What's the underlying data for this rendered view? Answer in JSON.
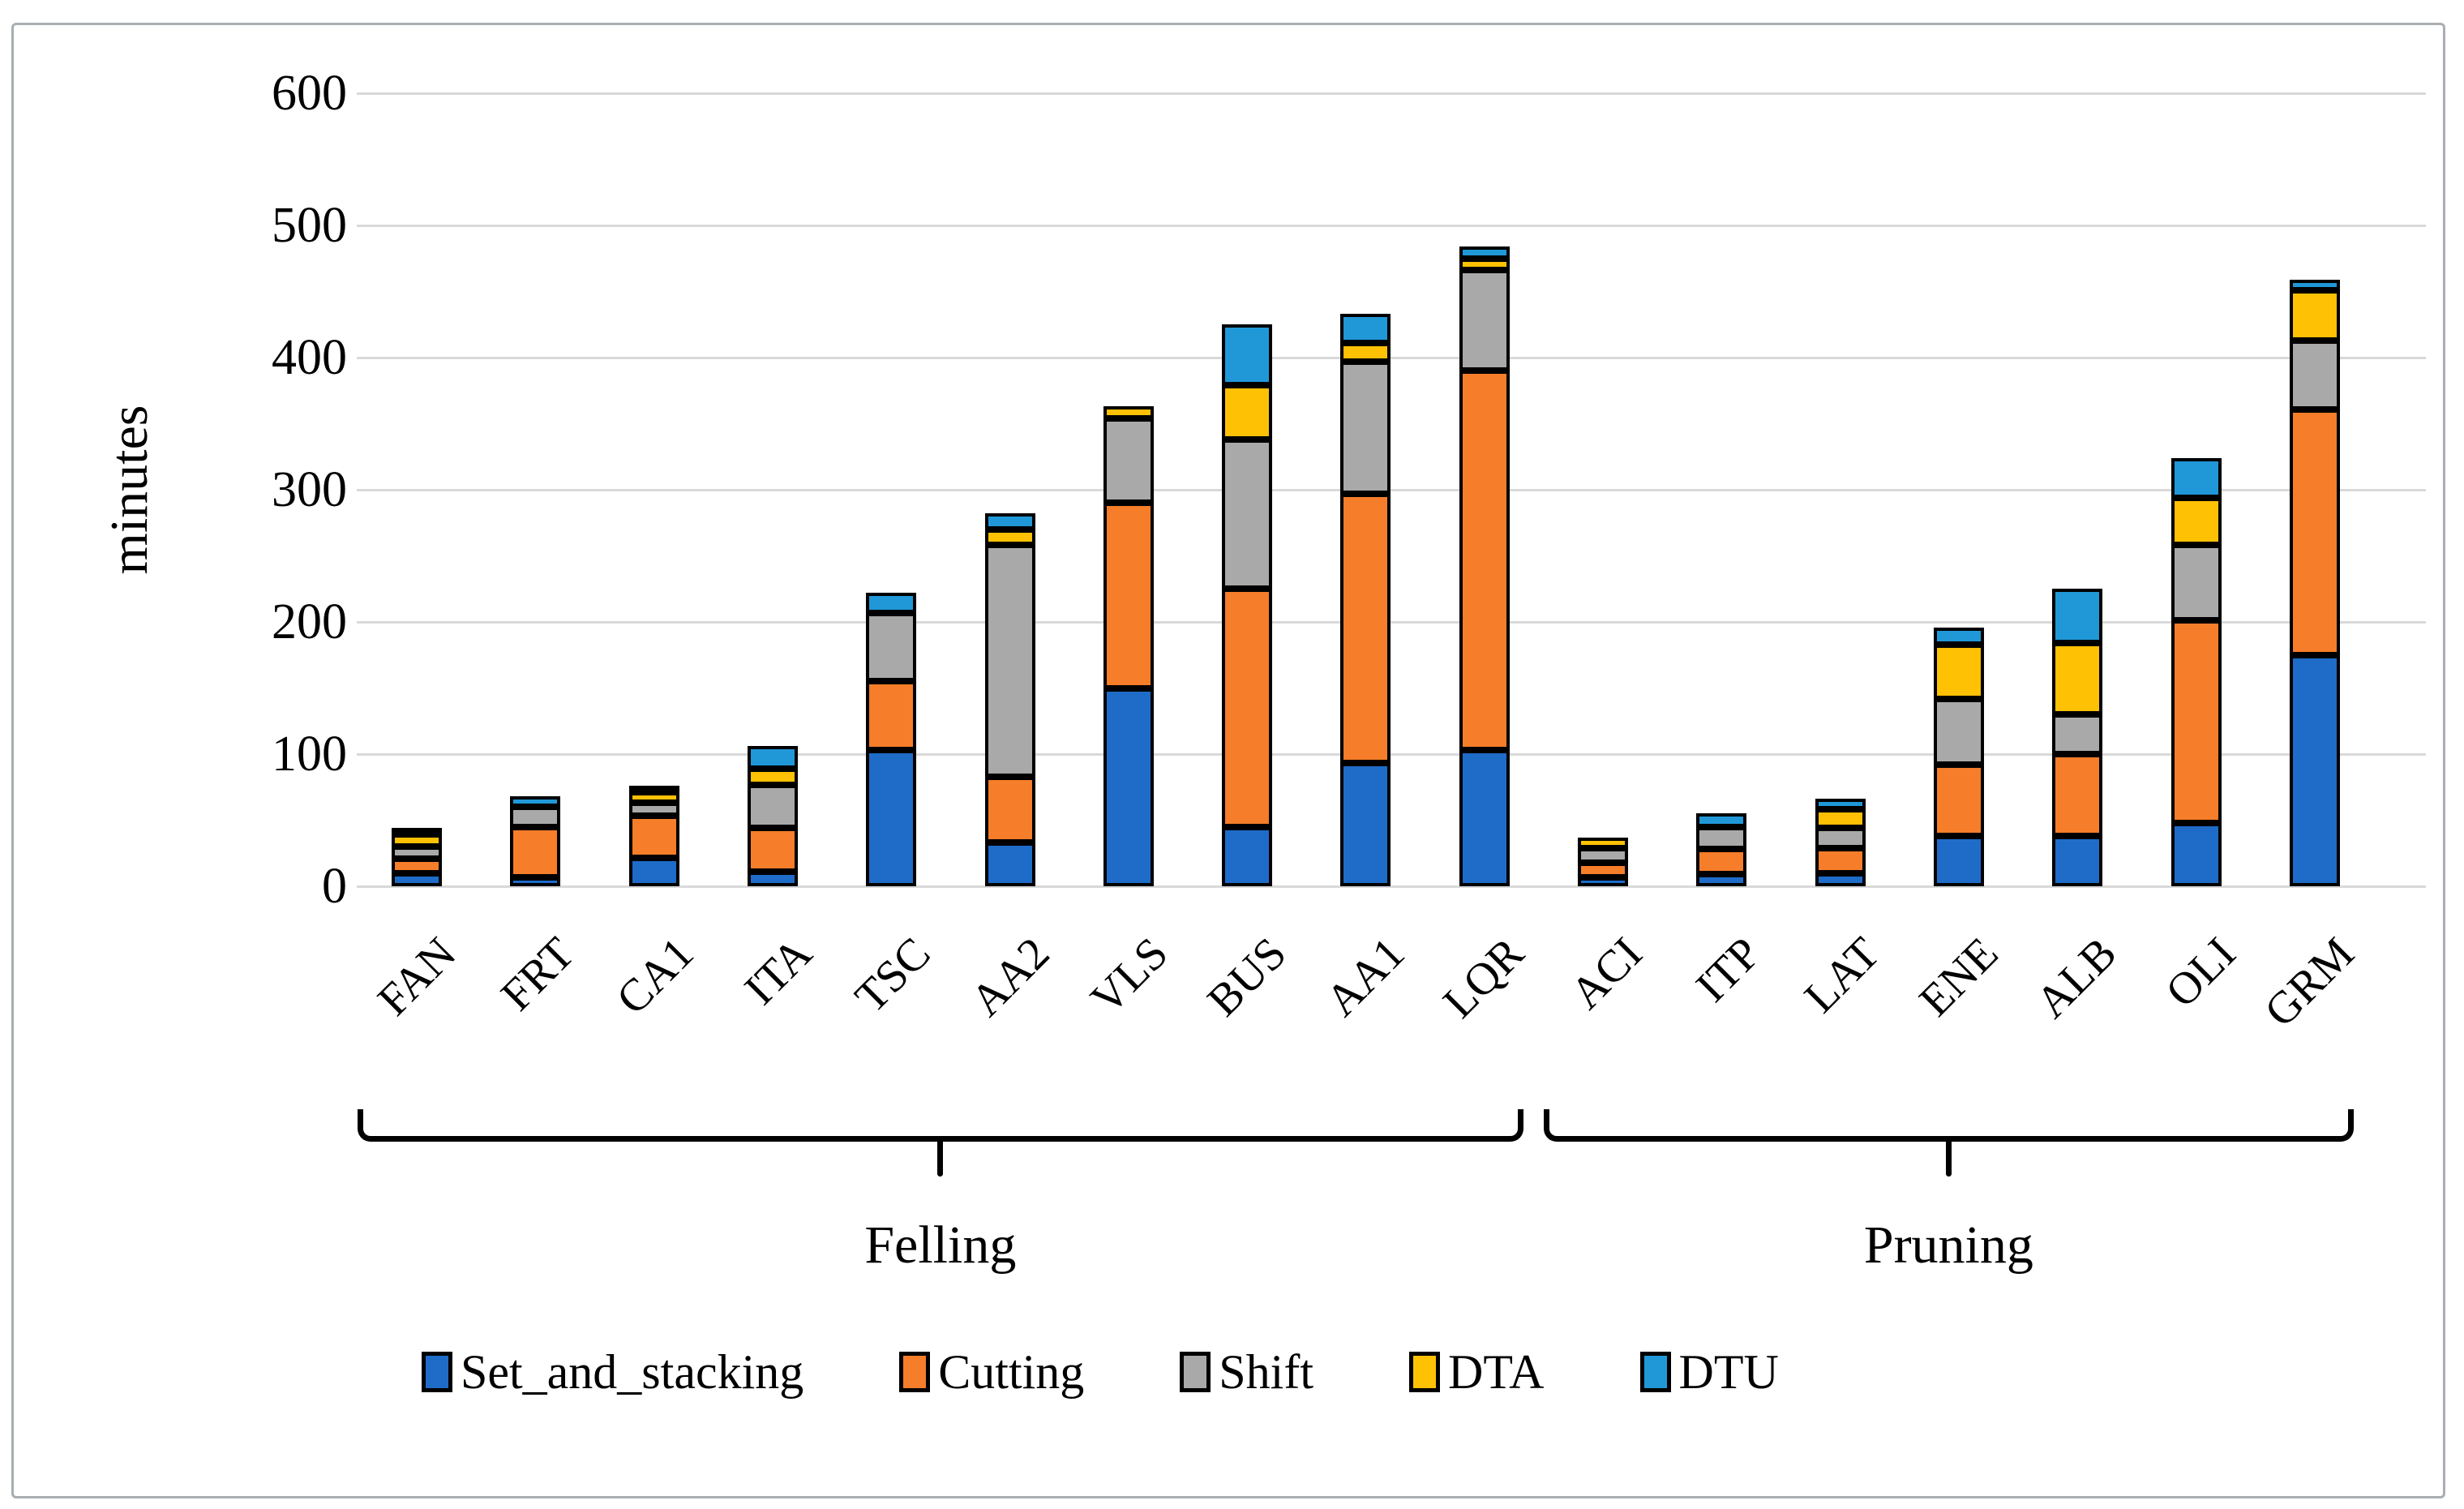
{
  "chart_data": {
    "type": "bar",
    "subtype": "stacked-vertical",
    "title": "",
    "ylabel": "minutes",
    "xlabel": "",
    "ylim": [
      0,
      600
    ],
    "yticks": [
      0,
      100,
      200,
      300,
      400,
      500,
      600
    ],
    "grid": "horizontal",
    "legend_position": "bottom",
    "categories": [
      "FAN",
      "FRT",
      "CA1",
      "ITA",
      "TSC",
      "AA2",
      "VLS",
      "BUS",
      "AA1",
      "LQR",
      "ACI",
      "ITP",
      "LAT",
      "ENE",
      "ALB",
      "OLI",
      "GRM"
    ],
    "series": [
      {
        "name": "Set_and_stacking",
        "color": "#1E6CC8",
        "values": [
          10,
          7,
          22,
          11,
          103,
          33,
          150,
          45,
          93,
          103,
          7,
          9,
          10,
          38,
          38,
          48,
          175
        ]
      },
      {
        "name": "Cutting",
        "color": "#F67D29",
        "values": [
          11,
          38,
          32,
          33,
          52,
          50,
          140,
          180,
          204,
          287,
          11,
          19,
          19,
          54,
          62,
          153,
          186
        ]
      },
      {
        "name": "Shift",
        "color": "#A9A9A9",
        "values": [
          9,
          15,
          10,
          33,
          52,
          175,
          64,
          113,
          100,
          76,
          11,
          17,
          15,
          50,
          30,
          57,
          52
        ]
      },
      {
        "name": "DTA",
        "color": "#FFC103",
        "values": [
          9,
          0,
          8,
          12,
          0,
          12,
          9,
          41,
          14,
          9,
          8,
          0,
          14,
          41,
          54,
          36,
          38
        ]
      },
      {
        "name": "DTU",
        "color": "#2098D8",
        "values": [
          5,
          8,
          4,
          17,
          15,
          12,
          0,
          46,
          22,
          9,
          0,
          10,
          8,
          13,
          41,
          30,
          8
        ]
      }
    ],
    "totals": [
      44,
      68,
      76,
      106,
      222,
      282,
      363,
      425,
      433,
      484,
      37,
      55,
      66,
      196,
      225,
      324,
      459
    ],
    "groups": [
      {
        "label": "Felling",
        "start_category": "FAN",
        "end_category": "LQR"
      },
      {
        "label": "Pruning",
        "start_category": "ACI",
        "end_category": "GRM"
      }
    ]
  },
  "colors": {
    "gridline": "#d9d9d9",
    "frame_border": "#a9aeb2",
    "bar_border": "#000000",
    "background": "#ffffff"
  }
}
